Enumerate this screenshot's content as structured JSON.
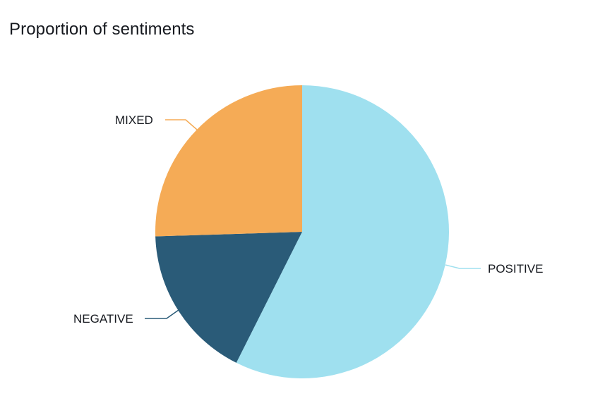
{
  "chart_data": {
    "type": "pie",
    "title": "Proportion of sentiments",
    "categories": [
      "POSITIVE",
      "NEGATIVE",
      "MIXED"
    ],
    "values": [
      57.4,
      17.1,
      25.5
    ],
    "units": "percent (estimated from slice angles)",
    "colors": {
      "POSITIVE": "#9fe0ef",
      "NEGATIVE": "#2a5b78",
      "MIXED": "#f5ab56"
    },
    "start_angle": "12 o'clock, clockwise",
    "legend": "none (labels attached via leader lines)",
    "data_labels": [
      "POSITIVE",
      "NEGATIVE",
      "MIXED"
    ]
  },
  "header": {
    "title": "Proportion of sentiments"
  },
  "labels": {
    "positive": "POSITIVE",
    "negative": "NEGATIVE",
    "mixed": "MIXED"
  }
}
